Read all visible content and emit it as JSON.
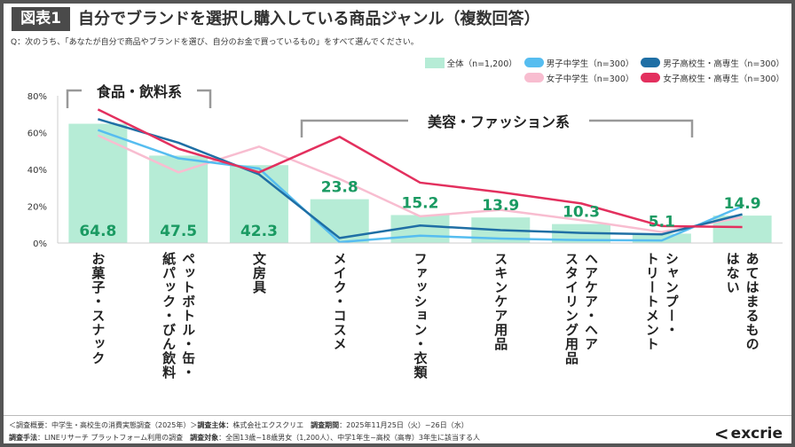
{
  "header": {
    "badge": "図表1",
    "title": "自分でブランドを選択し購入している商品ジャンル（複数回答）",
    "question": "Q：次のうち、「あなたが自分で商品やブランドを選び、自分のお金で買っているもの」をすべて選んでください。"
  },
  "groups": {
    "food": "食品・飲料系",
    "beauty": "美容・ファッション系"
  },
  "chart_data": {
    "type": "bar+line",
    "categories": [
      "お菓子・スナック",
      "ペットボトル・缶・\n紙パック・びん飲料",
      "文房具",
      "メイク・コスメ",
      "ファッション・衣類",
      "スキンケア用品",
      "ヘアケア・ヘア\nスタイリング用品",
      "シャンプー・\nトリートメント",
      "あてはまるもの\nはない"
    ],
    "yticks": [
      "0%",
      "20%",
      "40%",
      "60%",
      "80%"
    ],
    "ylim": [
      0,
      80
    ],
    "bar_series": {
      "name": "全体（n=1,200）",
      "color": "#b6ecd6",
      "label_color": "#1a9a62",
      "values": [
        64.8,
        47.5,
        42.3,
        23.8,
        15.2,
        13.9,
        10.3,
        5.1,
        14.9
      ],
      "labels": [
        "64.8",
        "47.5",
        "42.3",
        "23.8",
        "15.2",
        "13.9",
        "10.3",
        "5.1",
        "14.9"
      ]
    },
    "line_series": [
      {
        "name": "男子中学生（n=300）",
        "color": "#56bdf0",
        "values": [
          61.4,
          46,
          40.5,
          0.5,
          4,
          2.4,
          1.6,
          1.4,
          20
        ]
      },
      {
        "name": "男子高校生・高専生（n=300）",
        "color": "#1f6fa5",
        "values": [
          67.3,
          54.5,
          37.3,
          2.7,
          9.5,
          7,
          5.5,
          4.7,
          15.6
        ]
      },
      {
        "name": "女子中学生（n=300）",
        "color": "#f8bdd0",
        "values": [
          58.5,
          38.4,
          52.4,
          34.8,
          14.5,
          18,
          12.4,
          6,
          14
        ]
      },
      {
        "name": "女子高校生・高専生（n=300）",
        "color": "#e3305e",
        "values": [
          72.6,
          51.2,
          38.4,
          57.7,
          32.8,
          27.6,
          21.5,
          9.2,
          8.7
        ]
      }
    ]
  },
  "footer": {
    "line1_a": "＜調査概要：中学生・高校生の消費実態調査（2025年）＞",
    "line1_b": "調査主体：",
    "line1_c": "株式会社エクスクリエ　",
    "line1_d": "調査期間",
    "line1_e": "：2025年11月25日（火）~26日（水）",
    "line2_a": "調査手法",
    "line2_b": "：LINEリサーチ プラットフォーム利用の調査　",
    "line2_c": "調査対象",
    "line2_d": "：全国13歳~18歳男女（1,200人）、中学1年生~高校（高専）3年生に該当する人",
    "logo": "excrie"
  }
}
